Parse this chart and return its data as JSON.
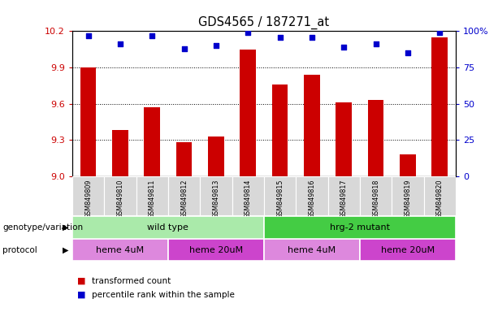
{
  "title": "GDS4565 / 187271_at",
  "samples": [
    "GSM849809",
    "GSM849810",
    "GSM849811",
    "GSM849812",
    "GSM849813",
    "GSM849814",
    "GSM849815",
    "GSM849816",
    "GSM849817",
    "GSM849818",
    "GSM849819",
    "GSM849820"
  ],
  "bar_values": [
    9.9,
    9.38,
    9.57,
    9.28,
    9.33,
    10.05,
    9.76,
    9.84,
    9.61,
    9.63,
    9.18,
    10.15
  ],
  "dot_values": [
    97,
    91,
    97,
    88,
    90,
    99,
    96,
    96,
    89,
    91,
    85,
    99
  ],
  "ylim_left": [
    9.0,
    10.2
  ],
  "ylim_right": [
    0,
    100
  ],
  "yticks_left": [
    9.0,
    9.3,
    9.6,
    9.9,
    10.2
  ],
  "yticks_right": [
    0,
    25,
    50,
    75,
    100
  ],
  "bar_color": "#cc0000",
  "dot_color": "#0000cc",
  "bar_width": 0.5,
  "genotype_groups": [
    {
      "label": "wild type",
      "start": 0,
      "end": 6,
      "color": "#aaeaaa"
    },
    {
      "label": "hrg-2 mutant",
      "start": 6,
      "end": 12,
      "color": "#44cc44"
    }
  ],
  "protocol_groups": [
    {
      "label": "heme 4uM",
      "start": 0,
      "end": 3,
      "color": "#dd88dd"
    },
    {
      "label": "heme 20uM",
      "start": 3,
      "end": 6,
      "color": "#cc44cc"
    },
    {
      "label": "heme 4uM",
      "start": 6,
      "end": 9,
      "color": "#dd88dd"
    },
    {
      "label": "heme 20uM",
      "start": 9,
      "end": 12,
      "color": "#cc44cc"
    }
  ],
  "legend_items": [
    {
      "label": "transformed count",
      "color": "#cc0000"
    },
    {
      "label": "percentile rank within the sample",
      "color": "#0000cc"
    }
  ],
  "tick_label_color_left": "#cc0000",
  "tick_label_color_right": "#0000cc",
  "xlabel_genotype": "genotype/variation",
  "xlabel_protocol": "protocol",
  "sample_box_color": "#d8d8d8",
  "grid_color": "black",
  "grid_linestyle": "dotted",
  "fig_width": 6.13,
  "fig_height": 3.84,
  "dpi": 100
}
